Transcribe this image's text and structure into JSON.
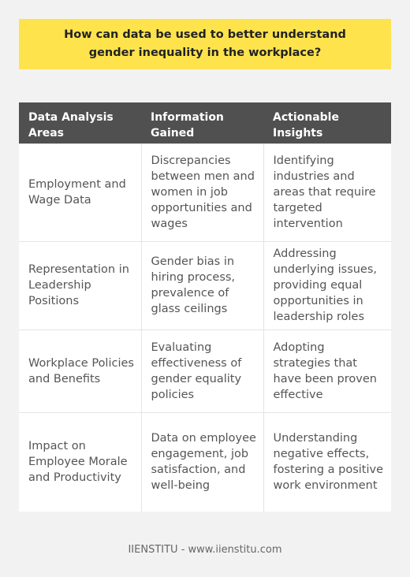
{
  "question": "How can data be used to better understand gender inequality in the workplace?",
  "table": {
    "headers": [
      "Data Analysis Areas",
      "Information Gained",
      "Actionable Insights"
    ],
    "rows": [
      [
        "Employment and Wage Data",
        "Discrepancies between men and women in job opportunities and wages",
        "Identifying industries and areas that require targeted intervention"
      ],
      [
        "Representation in Leadership Positions",
        "Gender bias in hiring process, prevalence of glass ceilings",
        "Addressing underlying issues, providing equal opportunities in leadership roles"
      ],
      [
        "Workplace Policies and Benefits",
        "Evaluating effectiveness of gender equality policies",
        "Adopting strategies that have been proven effective"
      ],
      [
        "Impact on Employee Morale and Productivity",
        "Data on employee engagement, job satisfaction, and well-being",
        "Understanding negative effects, fostering a positive work environment"
      ]
    ]
  },
  "footer": "IIENSTITU - www.iienstitu.com"
}
